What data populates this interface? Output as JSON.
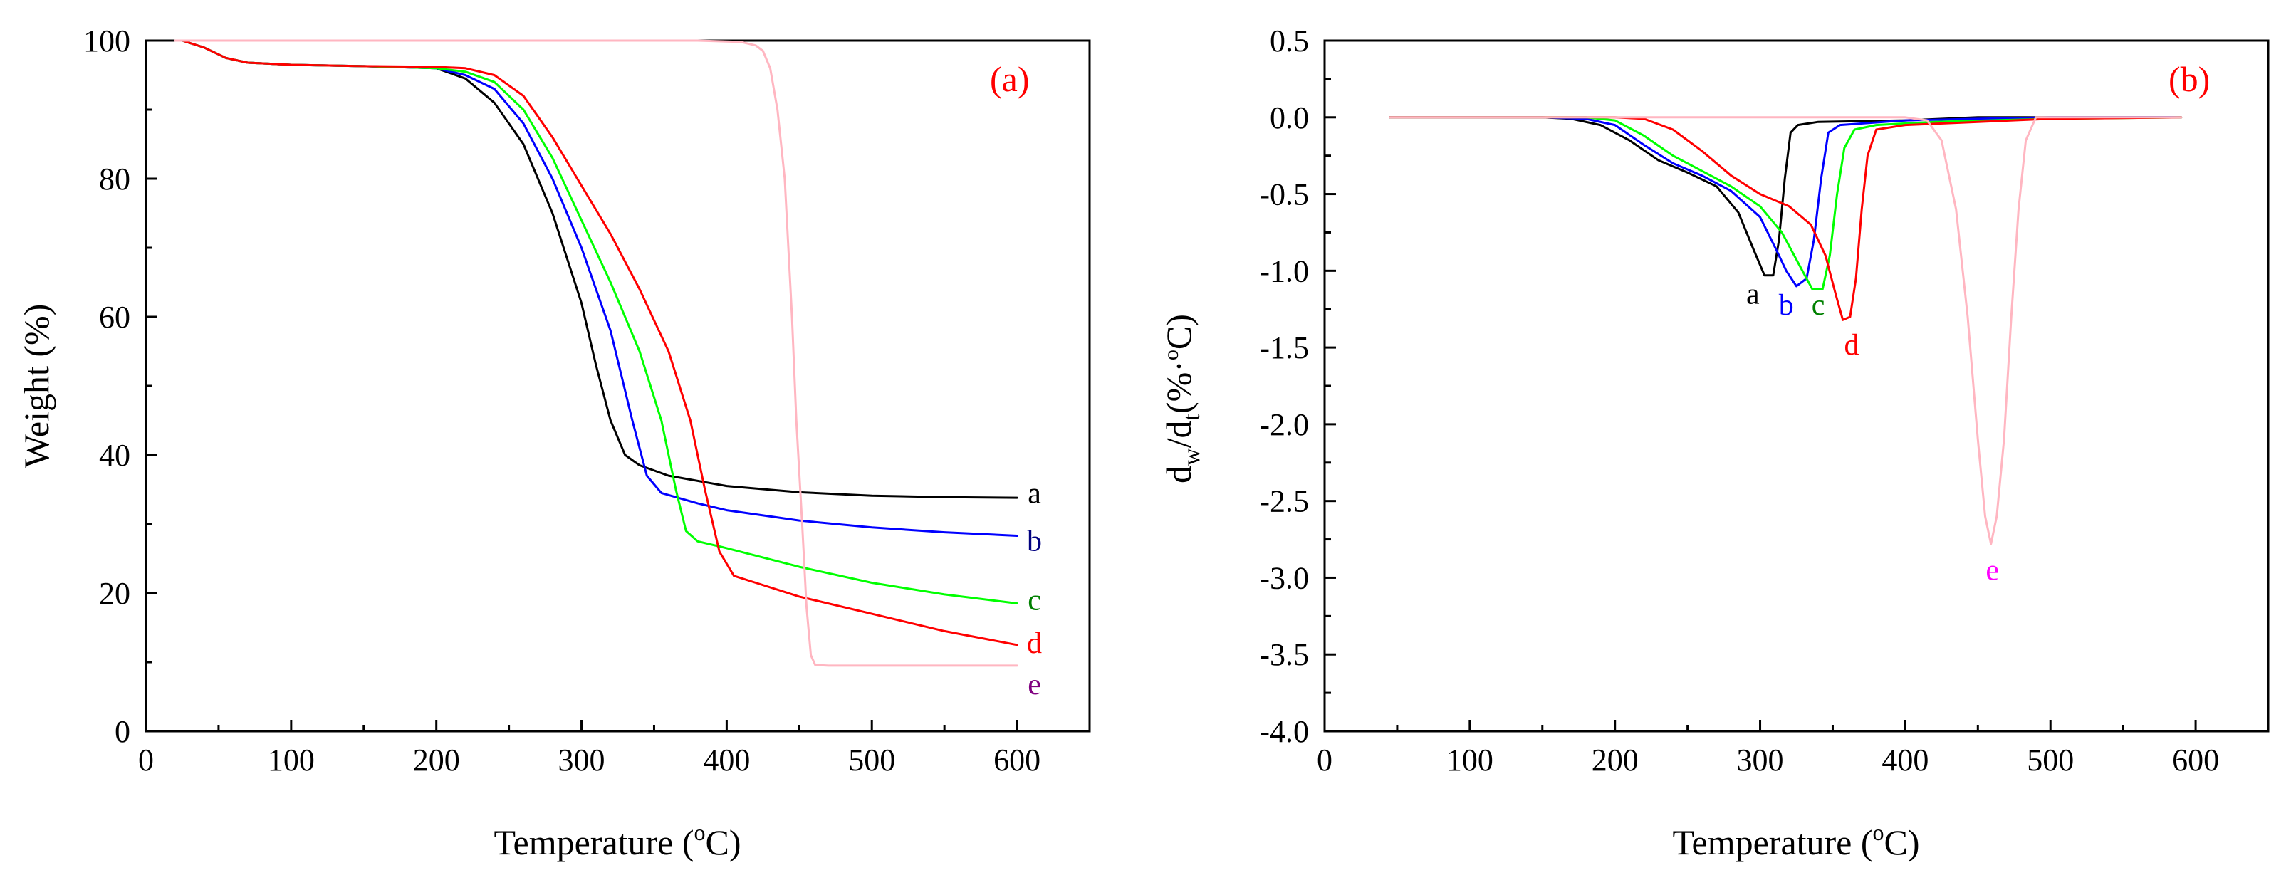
{
  "chart_data": [
    {
      "type": "line",
      "panel": "(a)",
      "xlabel": "Temperature (°C)",
      "xlabel_parts": {
        "pre": "Temperature (",
        "sup": "o",
        "post": "C)"
      },
      "ylabel": "Weight (%)",
      "xlim": [
        0,
        650
      ],
      "ylim": [
        0,
        100
      ],
      "xticks": [
        0,
        100,
        200,
        300,
        400,
        500,
        600
      ],
      "yticks": [
        0,
        20,
        40,
        60,
        80,
        100
      ],
      "xtick_labels": [
        "0",
        "100",
        "200",
        "300",
        "400",
        "500",
        "600"
      ],
      "ytick_labels": [
        "0",
        "20",
        "40",
        "60",
        "80",
        "100"
      ],
      "series": [
        {
          "name": "a",
          "color": "#000000",
          "label_at": [
            612,
            34.5
          ],
          "points": [
            [
              25,
              100
            ],
            [
              40,
              99
            ],
            [
              55,
              97.5
            ],
            [
              70,
              96.8
            ],
            [
              100,
              96.5
            ],
            [
              150,
              96.3
            ],
            [
              200,
              96
            ],
            [
              220,
              94.5
            ],
            [
              240,
              91
            ],
            [
              260,
              85
            ],
            [
              280,
              75
            ],
            [
              300,
              62
            ],
            [
              310,
              53
            ],
            [
              320,
              45
            ],
            [
              330,
              40
            ],
            [
              340,
              38.5
            ],
            [
              360,
              37
            ],
            [
              400,
              35.5
            ],
            [
              450,
              34.6
            ],
            [
              500,
              34.1
            ],
            [
              550,
              33.9
            ],
            [
              600,
              33.8
            ]
          ]
        },
        {
          "name": "b",
          "color": "#0000ff",
          "label_cx": [
            612,
            27.6
          ],
          "label_color": "#000080",
          "points": [
            [
              25,
              100
            ],
            [
              40,
              99
            ],
            [
              55,
              97.5
            ],
            [
              70,
              96.8
            ],
            [
              100,
              96.5
            ],
            [
              150,
              96.3
            ],
            [
              200,
              96
            ],
            [
              220,
              95
            ],
            [
              240,
              93
            ],
            [
              260,
              88
            ],
            [
              280,
              80
            ],
            [
              300,
              70
            ],
            [
              320,
              58
            ],
            [
              335,
              45
            ],
            [
              345,
              37
            ],
            [
              355,
              34.5
            ],
            [
              380,
              33
            ],
            [
              400,
              32
            ],
            [
              450,
              30.5
            ],
            [
              500,
              29.5
            ],
            [
              550,
              28.8
            ],
            [
              600,
              28.3
            ]
          ]
        },
        {
          "name": "c",
          "color": "#00ff00",
          "label_color": "#008000",
          "label_at": [
            612,
            19
          ],
          "points": [
            [
              25,
              100
            ],
            [
              40,
              99
            ],
            [
              55,
              97.5
            ],
            [
              70,
              96.8
            ],
            [
              100,
              96.5
            ],
            [
              150,
              96.3
            ],
            [
              200,
              96
            ],
            [
              220,
              95.5
            ],
            [
              240,
              94
            ],
            [
              260,
              90
            ],
            [
              280,
              83
            ],
            [
              300,
              74
            ],
            [
              320,
              65
            ],
            [
              340,
              55
            ],
            [
              355,
              45
            ],
            [
              365,
              35
            ],
            [
              372,
              29
            ],
            [
              380,
              27.5
            ],
            [
              400,
              26.5
            ],
            [
              450,
              23.8
            ],
            [
              500,
              21.5
            ],
            [
              550,
              19.8
            ],
            [
              600,
              18.5
            ]
          ]
        },
        {
          "name": "d",
          "color": "#ff0000",
          "label_color": "#ff0000",
          "label_at": [
            612,
            12.8
          ],
          "points": [
            [
              25,
              100
            ],
            [
              40,
              99
            ],
            [
              55,
              97.5
            ],
            [
              70,
              96.8
            ],
            [
              100,
              96.5
            ],
            [
              150,
              96.3
            ],
            [
              200,
              96.2
            ],
            [
              220,
              96
            ],
            [
              240,
              95
            ],
            [
              260,
              92
            ],
            [
              280,
              86
            ],
            [
              300,
              79
            ],
            [
              320,
              72
            ],
            [
              340,
              64
            ],
            [
              360,
              55
            ],
            [
              375,
              45
            ],
            [
              385,
              35
            ],
            [
              395,
              26
            ],
            [
              405,
              22.5
            ],
            [
              420,
              21.5
            ],
            [
              450,
              19.5
            ],
            [
              500,
              17
            ],
            [
              550,
              14.5
            ],
            [
              600,
              12.5
            ]
          ]
        },
        {
          "name": "e",
          "color": "#ffb6c1",
          "label_color": "#800080",
          "label_at": [
            612,
            6.8
          ],
          "points": [
            [
              20,
              100
            ],
            [
              100,
              100
            ],
            [
              200,
              100
            ],
            [
              300,
              100
            ],
            [
              380,
              100
            ],
            [
              410,
              99.8
            ],
            [
              420,
              99.3
            ],
            [
              425,
              98.5
            ],
            [
              430,
              96
            ],
            [
              435,
              90
            ],
            [
              440,
              80
            ],
            [
              445,
              60
            ],
            [
              448,
              45
            ],
            [
              452,
              30
            ],
            [
              455,
              18
            ],
            [
              458,
              11
            ],
            [
              461,
              9.6
            ],
            [
              470,
              9.5
            ],
            [
              500,
              9.5
            ],
            [
              550,
              9.5
            ],
            [
              600,
              9.5
            ]
          ]
        }
      ]
    },
    {
      "type": "line",
      "panel": "(b)",
      "xlabel": "Temperature (°C)",
      "xlabel_parts": {
        "pre": "Temperature (",
        "sup": "o",
        "post": "C)"
      },
      "ylabel": "dw/dt(%·°C)",
      "ylabel_parts": {
        "d1": "d",
        "s1": "w",
        "mid": "/d",
        "s2": "t",
        "post": "(%·",
        "sup": "o",
        "end": "C)"
      },
      "xlim": [
        0,
        650
      ],
      "ylim": [
        -4.0,
        0.5
      ],
      "xticks": [
        0,
        100,
        200,
        300,
        400,
        500,
        600
      ],
      "yticks": [
        0.5,
        0.0,
        -0.5,
        -1.0,
        -1.5,
        -2.0,
        -2.5,
        -3.0,
        -3.5,
        -4.0
      ],
      "xtick_labels": [
        "0",
        "100",
        "200",
        "300",
        "400",
        "500",
        "600"
      ],
      "ytick_labels": [
        "0.5",
        "0.0",
        "-0.5",
        "-1.0",
        "-1.5",
        "-2.0",
        "-2.5",
        "-3.0",
        "-3.5",
        "-4.0"
      ],
      "series": [
        {
          "name": "a",
          "color": "#000000",
          "label_color": "#000000",
          "label_at": [
            295,
            -1.15
          ],
          "points": [
            [
              45,
              0
            ],
            [
              100,
              0
            ],
            [
              150,
              0
            ],
            [
              170,
              -0.01
            ],
            [
              190,
              -0.05
            ],
            [
              210,
              -0.15
            ],
            [
              230,
              -0.28
            ],
            [
              250,
              -0.36
            ],
            [
              270,
              -0.45
            ],
            [
              285,
              -0.62
            ],
            [
              295,
              -0.85
            ],
            [
              303,
              -1.03
            ],
            [
              309,
              -1.03
            ],
            [
              313,
              -0.8
            ],
            [
              317,
              -0.4
            ],
            [
              321,
              -0.1
            ],
            [
              326,
              -0.05
            ],
            [
              340,
              -0.03
            ],
            [
              400,
              -0.02
            ],
            [
              450,
              0
            ],
            [
              500,
              0
            ],
            [
              590,
              0
            ]
          ]
        },
        {
          "name": "b",
          "color": "#0000ff",
          "label_color": "#0000ff",
          "label_at": [
            318,
            -1.22
          ],
          "points": [
            [
              45,
              0
            ],
            [
              100,
              0
            ],
            [
              150,
              0
            ],
            [
              180,
              -0.01
            ],
            [
              200,
              -0.05
            ],
            [
              220,
              -0.18
            ],
            [
              240,
              -0.3
            ],
            [
              260,
              -0.38
            ],
            [
              280,
              -0.48
            ],
            [
              300,
              -0.65
            ],
            [
              312,
              -0.88
            ],
            [
              318,
              -1.0
            ],
            [
              325,
              -1.1
            ],
            [
              332,
              -1.05
            ],
            [
              337,
              -0.8
            ],
            [
              342,
              -0.4
            ],
            [
              347,
              -0.1
            ],
            [
              355,
              -0.05
            ],
            [
              400,
              -0.02
            ],
            [
              450,
              -0.01
            ],
            [
              500,
              0
            ],
            [
              590,
              0
            ]
          ]
        },
        {
          "name": "c",
          "color": "#00ff00",
          "label_color": "#008000",
          "label_at": [
            340,
            -1.22
          ],
          "points": [
            [
              45,
              0
            ],
            [
              100,
              0
            ],
            [
              180,
              0
            ],
            [
              200,
              -0.02
            ],
            [
              220,
              -0.12
            ],
            [
              240,
              -0.25
            ],
            [
              260,
              -0.35
            ],
            [
              280,
              -0.45
            ],
            [
              300,
              -0.58
            ],
            [
              315,
              -0.75
            ],
            [
              328,
              -0.98
            ],
            [
              336,
              -1.12
            ],
            [
              343,
              -1.12
            ],
            [
              348,
              -0.9
            ],
            [
              353,
              -0.5
            ],
            [
              358,
              -0.2
            ],
            [
              365,
              -0.08
            ],
            [
              380,
              -0.05
            ],
            [
              420,
              -0.03
            ],
            [
              500,
              -0.01
            ],
            [
              590,
              0
            ]
          ]
        },
        {
          "name": "d",
          "color": "#ff0000",
          "label_color": "#ff0000",
          "label_at": [
            363,
            -1.48
          ],
          "points": [
            [
              45,
              0
            ],
            [
              100,
              0
            ],
            [
              200,
              0
            ],
            [
              220,
              -0.01
            ],
            [
              240,
              -0.08
            ],
            [
              260,
              -0.22
            ],
            [
              280,
              -0.38
            ],
            [
              300,
              -0.5
            ],
            [
              320,
              -0.58
            ],
            [
              335,
              -0.7
            ],
            [
              345,
              -0.9
            ],
            [
              352,
              -1.15
            ],
            [
              357,
              -1.32
            ],
            [
              362,
              -1.3
            ],
            [
              366,
              -1.05
            ],
            [
              370,
              -0.6
            ],
            [
              374,
              -0.25
            ],
            [
              380,
              -0.08
            ],
            [
              400,
              -0.05
            ],
            [
              450,
              -0.03
            ],
            [
              500,
              -0.01
            ],
            [
              590,
              0
            ]
          ]
        },
        {
          "name": "e",
          "color": "#ffb6c1",
          "label_color": "#ff00ff",
          "label_at": [
            460,
            -2.95
          ],
          "points": [
            [
              45,
              0
            ],
            [
              200,
              0
            ],
            [
              300,
              0
            ],
            [
              400,
              0
            ],
            [
              415,
              -0.02
            ],
            [
              425,
              -0.15
            ],
            [
              435,
              -0.6
            ],
            [
              443,
              -1.3
            ],
            [
              450,
              -2.1
            ],
            [
              455,
              -2.6
            ],
            [
              459,
              -2.78
            ],
            [
              463,
              -2.6
            ],
            [
              468,
              -2.1
            ],
            [
              473,
              -1.3
            ],
            [
              478,
              -0.6
            ],
            [
              483,
              -0.15
            ],
            [
              490,
              0
            ],
            [
              500,
              0
            ],
            [
              590,
              0
            ]
          ]
        }
      ]
    }
  ]
}
